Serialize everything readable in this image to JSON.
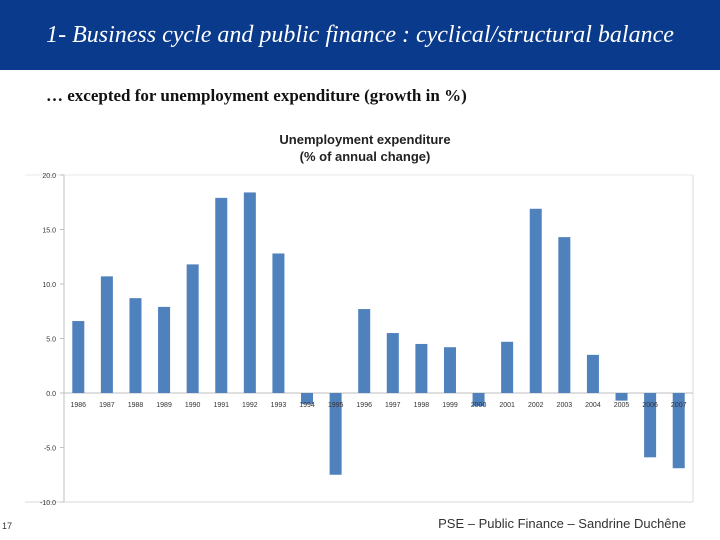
{
  "slide": {
    "title": "1- Business cycle and public finance : cyclical/structural balance",
    "subtitle": "… excepted for unemployment expenditure (growth in %)",
    "page_number": "17",
    "footer": "PSE – Public Finance – Sandrine Duchêne",
    "header_color": "#0a3a8c"
  },
  "chart_data": {
    "type": "bar",
    "title": "Unemployment expenditure",
    "subtitle": "(% of annual change)",
    "xlabel": "",
    "ylabel": "",
    "categories": [
      "1986",
      "1987",
      "1988",
      "1989",
      "1990",
      "1991",
      "1992",
      "1993",
      "1994",
      "1995",
      "1996",
      "1997",
      "1998",
      "1999",
      "2000",
      "2001",
      "2002",
      "2003",
      "2004",
      "2005",
      "2006",
      "2007"
    ],
    "values": [
      6.6,
      10.7,
      8.7,
      7.9,
      11.8,
      17.9,
      18.4,
      12.8,
      -1.0,
      -7.5,
      7.7,
      5.5,
      4.5,
      4.2,
      -1.2,
      4.7,
      16.9,
      14.3,
      3.5,
      -0.7,
      -5.9,
      -6.9
    ],
    "ylim": [
      -10,
      20
    ],
    "yticks": [
      "20.0",
      "15.0",
      "10.0",
      "5.0",
      "0.0",
      "-5.0",
      "-10.0"
    ],
    "bar_color": "#4f81bd",
    "grid": false,
    "legend": "none"
  }
}
